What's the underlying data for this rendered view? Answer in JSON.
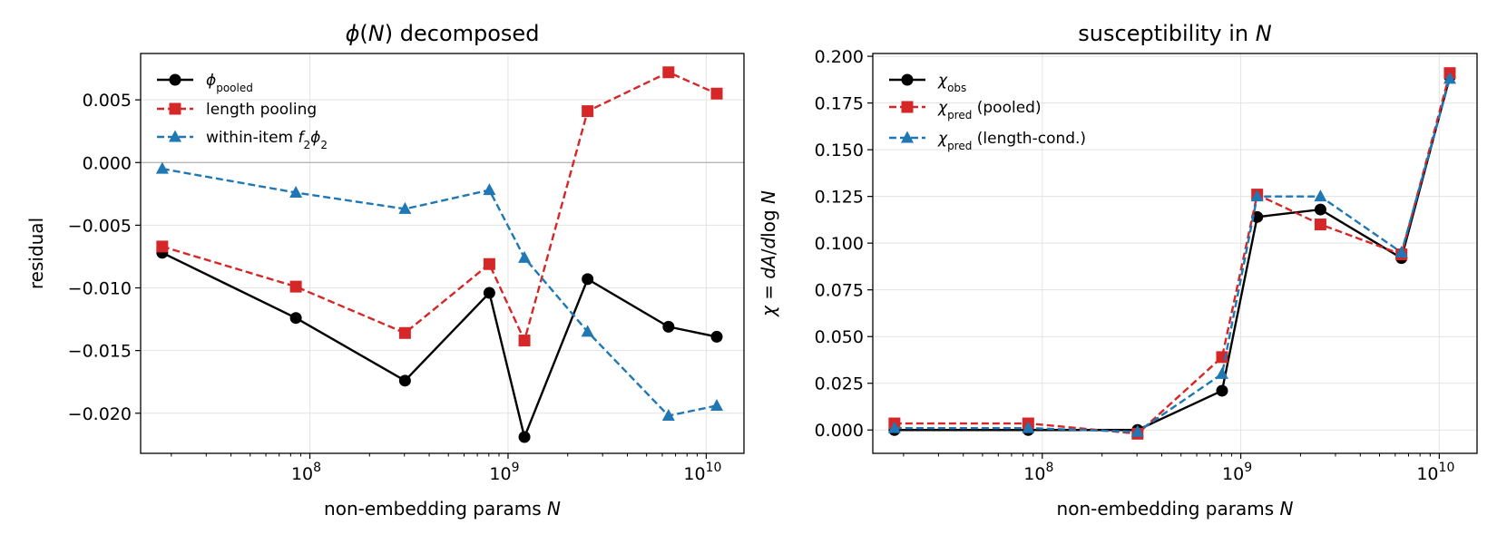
{
  "chart_data": [
    {
      "type": "line",
      "title": "ϕ(N) decomposed",
      "title_parts": [
        {
          "t": "ϕ",
          "i": true
        },
        {
          "t": "("
        },
        {
          "t": "N",
          "i": true
        },
        {
          "t": ") decomposed"
        }
      ],
      "xlabel": "non-embedding params N",
      "xlabel_parts": [
        {
          "t": "non-embedding params "
        },
        {
          "t": "N",
          "i": true
        }
      ],
      "ylabel": "residual",
      "ylabel_parts": [
        {
          "t": "residual"
        }
      ],
      "x_scale": "log",
      "xlim": [
        14000000,
        15500000000
      ],
      "ylim": [
        -0.0232,
        0.0087
      ],
      "x_ticks": [
        100000000,
        1000000000,
        10000000000
      ],
      "x_tick_labels": [
        "10^8",
        "10^9",
        "10^10"
      ],
      "y_ticks": [
        -0.02,
        -0.015,
        -0.01,
        -0.005,
        0,
        0.005
      ],
      "y_tick_labels": [
        "−0.020",
        "−0.015",
        "−0.010",
        "−0.005",
        "0.000",
        "0.005"
      ],
      "grid": true,
      "zero_line": true,
      "legend_position": "upper-left",
      "x": [
        18000000,
        85000000,
        302000000,
        805000000,
        1210000000,
        2520000000,
        6450000000,
        11300000000
      ],
      "series": [
        {
          "name": "ϕ_pooled",
          "label_parts": [
            {
              "t": "ϕ",
              "i": true
            },
            {
              "t": "pooled",
              "sub": true
            }
          ],
          "color": "#000000",
          "marker": "circle",
          "dash": "solid",
          "values": [
            -0.0072,
            -0.0124,
            -0.0174,
            -0.0104,
            -0.0219,
            -0.0093,
            -0.0131,
            -0.0139
          ]
        },
        {
          "name": "length pooling",
          "label_parts": [
            {
              "t": "length pooling"
            }
          ],
          "color": "#d62728",
          "marker": "square",
          "dash": "dashed",
          "values": [
            -0.0067,
            -0.0099,
            -0.0136,
            -0.0081,
            -0.0142,
            0.0041,
            0.0072,
            0.0055
          ]
        },
        {
          "name": "within-item f_2ϕ_2",
          "label_parts": [
            {
              "t": "within-item "
            },
            {
              "t": "f",
              "i": true
            },
            {
              "t": "2",
              "sub": true
            },
            {
              "t": "ϕ",
              "i": true
            },
            {
              "t": "2",
              "sub": true
            }
          ],
          "color": "#1f77b4",
          "marker": "triangle",
          "dash": "dashed",
          "values": [
            -0.0005,
            -0.0024,
            -0.0037,
            -0.0022,
            -0.0076,
            -0.0135,
            -0.0202,
            -0.0194
          ]
        }
      ]
    },
    {
      "type": "line",
      "title": "susceptibility in N",
      "title_parts": [
        {
          "t": "susceptibility in "
        },
        {
          "t": "N",
          "i": true
        }
      ],
      "xlabel": "non-embedding params N",
      "xlabel_parts": [
        {
          "t": "non-embedding params "
        },
        {
          "t": "N",
          "i": true
        }
      ],
      "ylabel": "χ = dA/dlog N",
      "ylabel_parts": [
        {
          "t": "χ",
          "i": true
        },
        {
          "t": " = "
        },
        {
          "t": "dA",
          "i": true
        },
        {
          "t": "/"
        },
        {
          "t": "d",
          "i": true
        },
        {
          "t": "log "
        },
        {
          "t": "N",
          "i": true
        }
      ],
      "x_scale": "log",
      "xlim": [
        14000000,
        15500000000
      ],
      "ylim": [
        -0.0125,
        0.2015
      ],
      "x_ticks": [
        100000000,
        1000000000,
        10000000000
      ],
      "x_tick_labels": [
        "10^8",
        "10^9",
        "10^10"
      ],
      "y_ticks": [
        0,
        0.025,
        0.05,
        0.075,
        0.1,
        0.125,
        0.15,
        0.175,
        0.2
      ],
      "y_tick_labels": [
        "0.000",
        "0.025",
        "0.050",
        "0.075",
        "0.100",
        "0.125",
        "0.150",
        "0.175",
        "0.200"
      ],
      "grid": true,
      "zero_line": false,
      "legend_position": "upper-left",
      "x": [
        18000000,
        85000000,
        302000000,
        805000000,
        1210000000,
        2520000000,
        6450000000,
        11300000000
      ],
      "series": [
        {
          "name": "χ_obs",
          "label_parts": [
            {
              "t": "χ",
              "i": true
            },
            {
              "t": "obs",
              "sub": true
            }
          ],
          "color": "#000000",
          "marker": "circle",
          "dash": "solid",
          "values": [
            0.0,
            0.0,
            0.0,
            0.021,
            0.114,
            0.118,
            0.092,
            0.189
          ]
        },
        {
          "name": "χ_pred (pooled)",
          "label_parts": [
            {
              "t": "χ",
              "i": true
            },
            {
              "t": "pred",
              "sub": true
            },
            {
              "t": " (pooled)"
            }
          ],
          "color": "#d62728",
          "marker": "square",
          "dash": "dashed",
          "values": [
            0.0035,
            0.0035,
            -0.002,
            0.039,
            0.126,
            0.11,
            0.094,
            0.191
          ]
        },
        {
          "name": "χ_pred (length-cond.)",
          "label_parts": [
            {
              "t": "χ",
              "i": true
            },
            {
              "t": "pred",
              "sub": true
            },
            {
              "t": " (length-cond.)"
            }
          ],
          "color": "#1f77b4",
          "marker": "triangle",
          "dash": "dashed",
          "values": [
            0.001,
            0.001,
            -0.001,
            0.03,
            0.125,
            0.125,
            0.095,
            0.188
          ]
        }
      ]
    }
  ]
}
